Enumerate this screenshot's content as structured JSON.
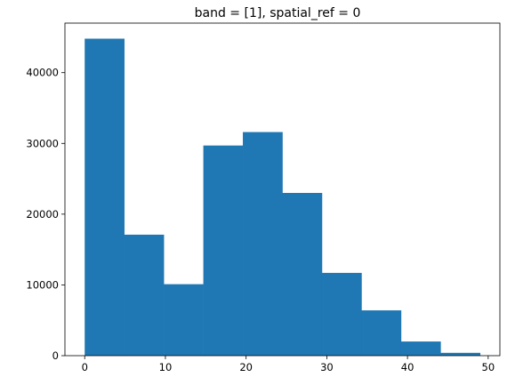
{
  "chart_data": {
    "type": "bar",
    "title": "band = [1], spatial_ref = 0",
    "xlabel": "",
    "ylabel": "",
    "bin_edges": [
      0,
      4.9,
      9.8,
      14.7,
      19.6,
      24.5,
      29.4,
      34.3,
      39.2,
      44.1,
      49.0
    ],
    "values": [
      44800,
      17100,
      10100,
      29700,
      31600,
      23000,
      11700,
      6400,
      2000,
      400
    ],
    "xlim": [
      -2.45,
      51.45
    ],
    "ylim": [
      0,
      47000
    ],
    "xticks": [
      0,
      10,
      20,
      30,
      40,
      50
    ],
    "yticks": [
      0,
      10000,
      20000,
      30000,
      40000
    ],
    "bar_color": "#1f77b4",
    "grid": false
  }
}
